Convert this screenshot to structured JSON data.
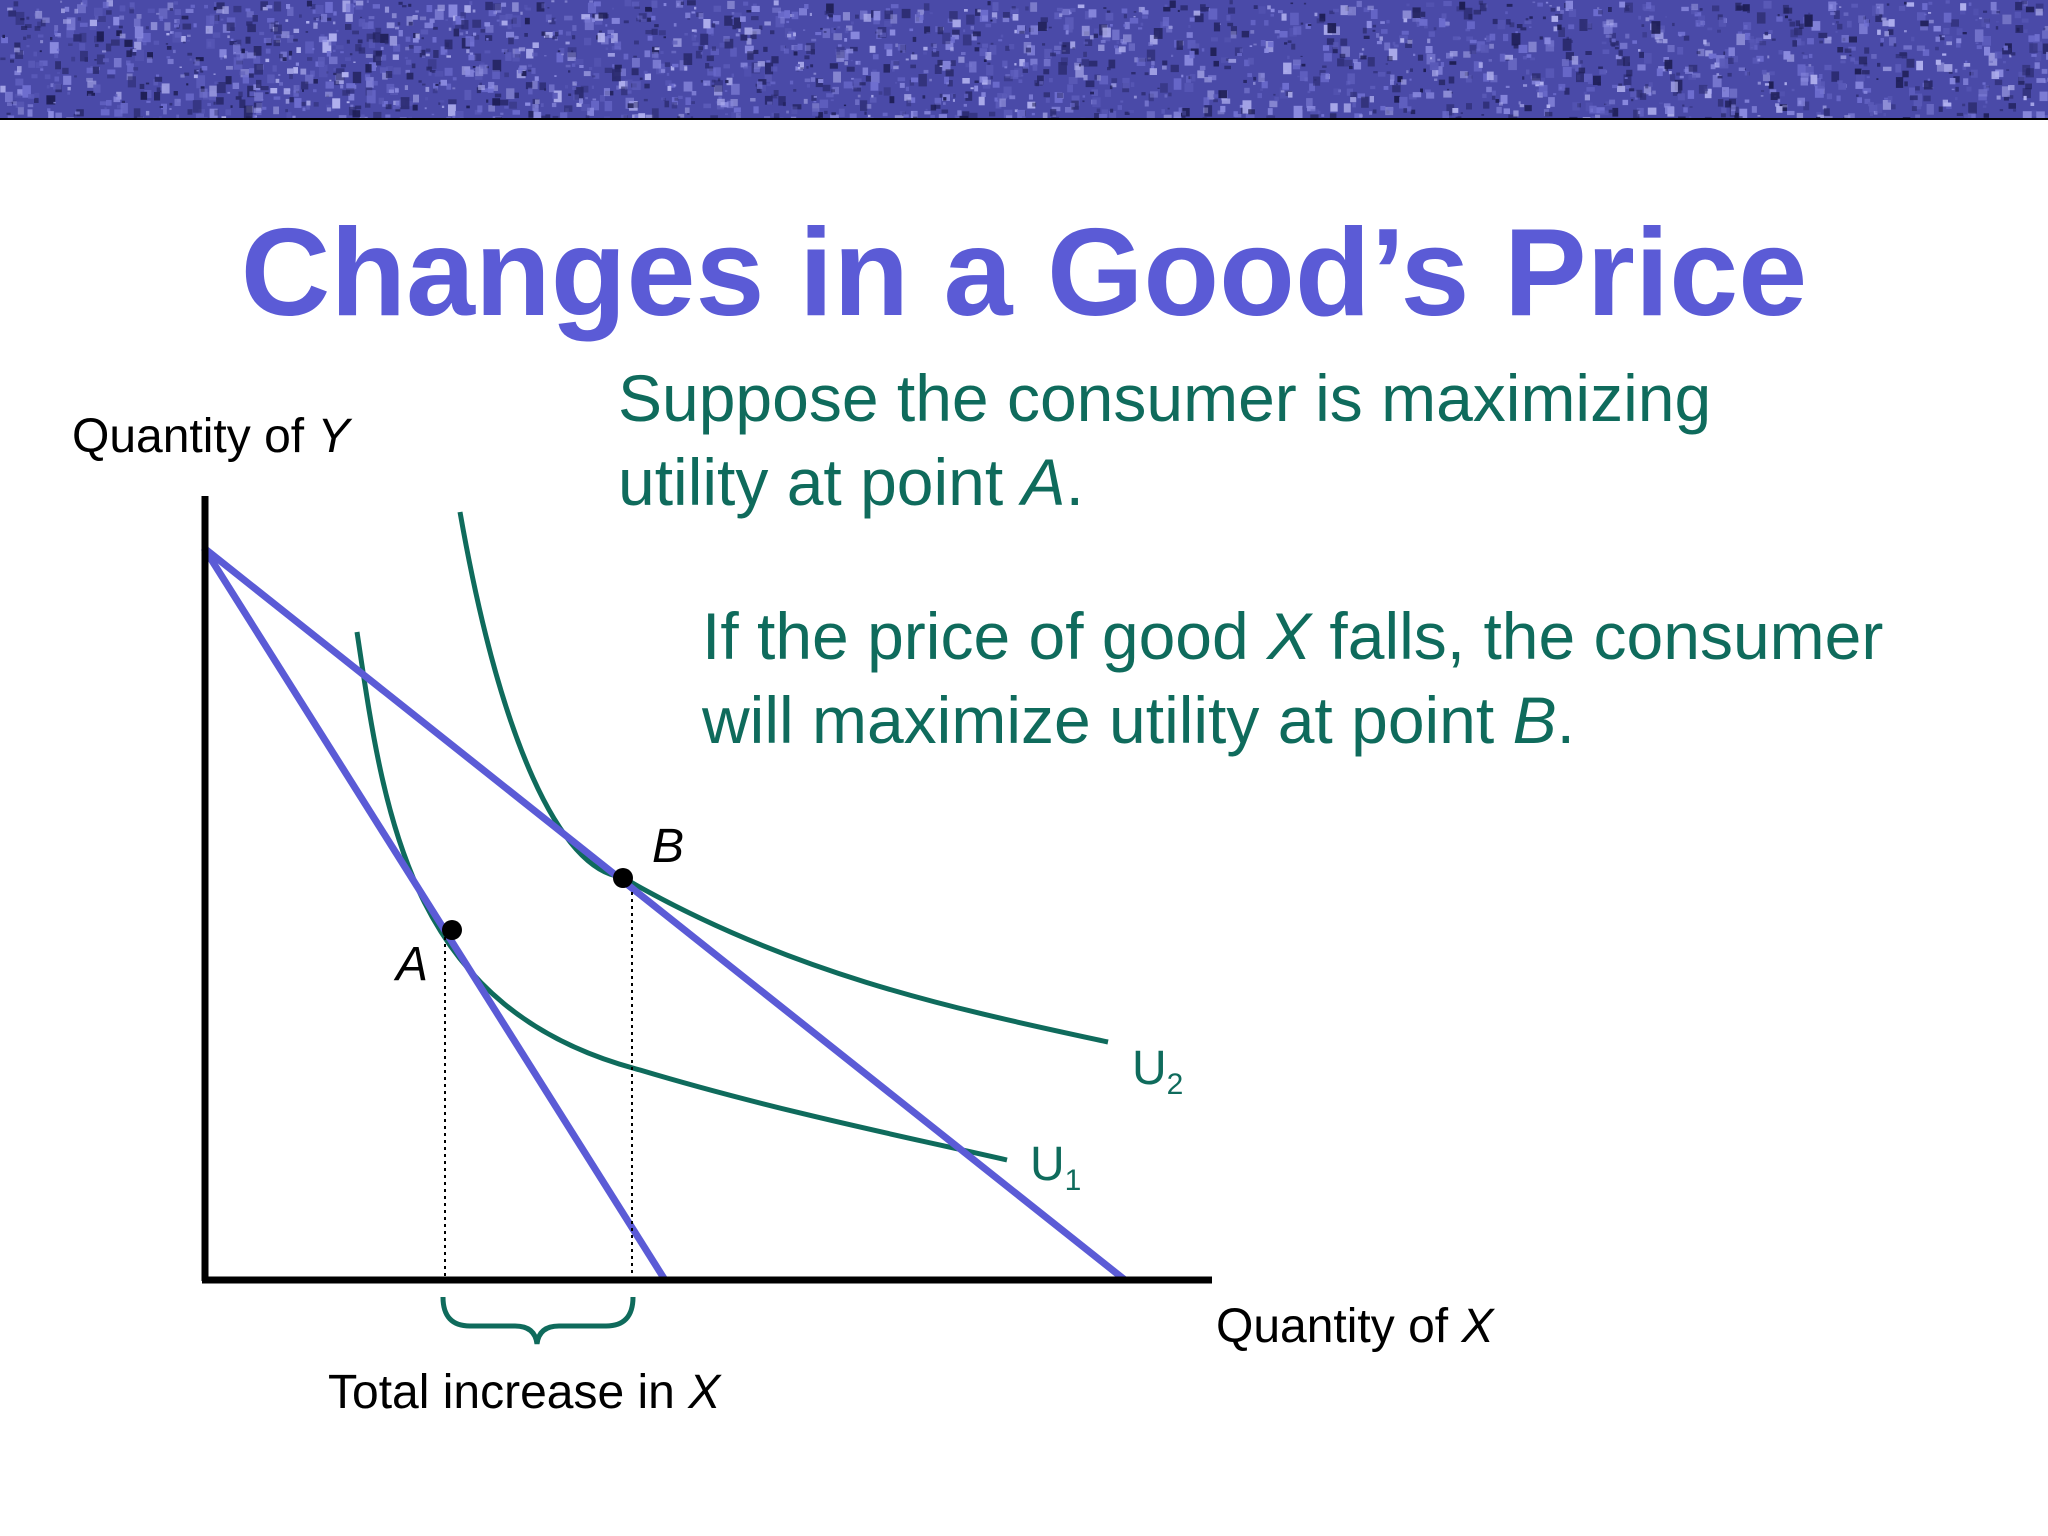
{
  "slide": {
    "title": "Changes in a Good’s Price",
    "text1": {
      "main": "Suppose the consumer is maximizing utility at point ",
      "point": "A",
      "end": "."
    },
    "text2": {
      "part1": "If the price of good ",
      "good": "X",
      "part2": " falls, the consumer will maximize utility at point ",
      "point": "B",
      "end": "."
    }
  },
  "diagram": {
    "y_axis_label": {
      "text": "Quantity of ",
      "var": "Y"
    },
    "x_axis_label": {
      "text": "Quantity of ",
      "var": "X"
    },
    "bracket_label": {
      "text": "Total increase in ",
      "var": "X"
    },
    "points": {
      "a": "A",
      "b": "B"
    },
    "curves": {
      "u1": {
        "base": "U",
        "sub": "1"
      },
      "u2": {
        "base": "U",
        "sub": "2"
      }
    }
  },
  "colors": {
    "title": "#5b5bd6",
    "body_text": "#0f6b5c",
    "budget_line": "#5b5bd6",
    "indifference_curve": "#0f6b5c",
    "axis": "#000000",
    "banner": "#4a4aa8"
  }
}
